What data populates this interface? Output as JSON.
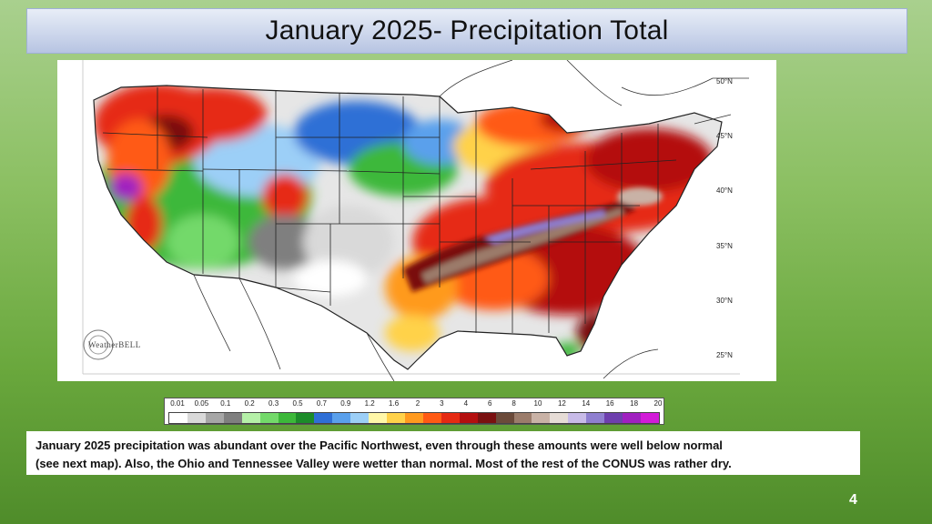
{
  "slide": {
    "title": "January 2025- Precipitation Total",
    "page_number": "4",
    "caption_line1": "January 2025 precipitation was abundant over the Pacific Northwest, even through these amounts were well below normal",
    "caption_line2": "(see next map).  Also, the Ohio and Tennessee Valley were wetter than normal.  Most of the rest of the CONUS was rather dry."
  },
  "map": {
    "watermark": "WeatherBELL",
    "latitude_labels": [
      "50°N",
      "45°N",
      "40°N",
      "35°N",
      "30°N",
      "25°N"
    ]
  },
  "legend": {
    "labels": [
      "0.01",
      "0.05",
      "0.1",
      "0.2",
      "0.3",
      "0.5",
      "0.7",
      "0.9",
      "1.2",
      "1.6",
      "2",
      "3",
      "4",
      "6",
      "8",
      "10",
      "12",
      "14",
      "16",
      "18",
      "20"
    ],
    "colors": [
      "#ffffff",
      "#d9d9d9",
      "#a6a6a6",
      "#7f7f7f",
      "#b5f0a8",
      "#73d96a",
      "#3cb83a",
      "#1c8c2a",
      "#2f6fd6",
      "#5aa0ec",
      "#9ccff7",
      "#fff7a8",
      "#ffd24a",
      "#ff9a1f",
      "#ff5a14",
      "#e62a12",
      "#b40f0f",
      "#7a1010",
      "#6b4a3a",
      "#9b7c6b",
      "#c9b2a6",
      "#e6dcd6",
      "#c8bbe8",
      "#8f7fd0",
      "#6e3fae",
      "#a020c0",
      "#d21bd8"
    ]
  }
}
